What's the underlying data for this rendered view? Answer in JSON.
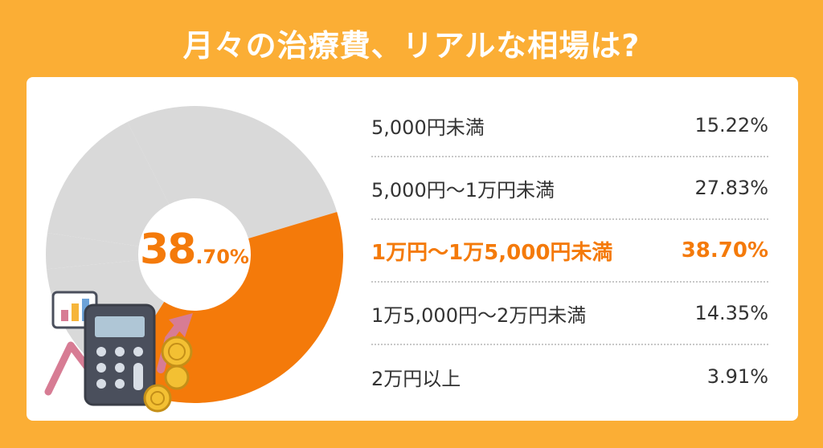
{
  "title": "月々の治療費、リアルな相場は?",
  "center_label": {
    "main": "38",
    "sub": ".70%"
  },
  "colors": {
    "background": "#FBAE35",
    "highlight": "#F47A0A",
    "rest": "#D9D9D9",
    "text": "#333333"
  },
  "chart_data": {
    "type": "pie",
    "title": "月々の治療費、リアルな相場は?",
    "categories": [
      "5,000円未満",
      "5,000円〜1万円未満",
      "1万円〜1万5,000円未満",
      "1万5,000円〜2万円未満",
      "2万円以上"
    ],
    "values": [
      15.22,
      27.83,
      38.7,
      14.35,
      3.91
    ],
    "value_labels": [
      "15.22%",
      "27.83%",
      "38.70%",
      "14.35%",
      "3.91%"
    ],
    "highlight_index": 2,
    "donut": true
  }
}
